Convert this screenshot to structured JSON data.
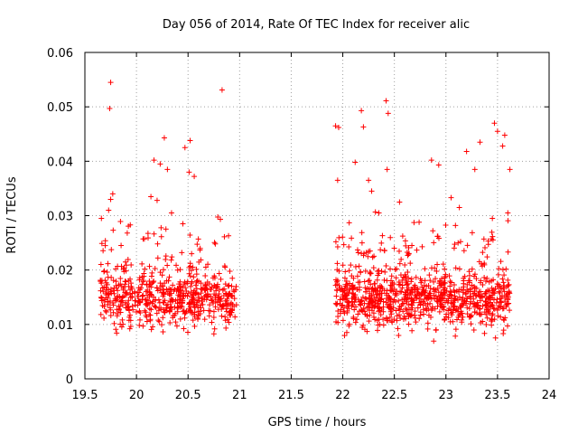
{
  "chart_data": {
    "type": "scatter",
    "title": "Day 056 of 2014, Rate Of TEC Index for receiver alic",
    "xlabel": "GPS time / hours",
    "ylabel": "ROTI / TECUs",
    "xlim": [
      19.5,
      24
    ],
    "ylim": [
      0,
      0.06
    ],
    "xticks": [
      "19.5",
      "20",
      "20.5",
      "21",
      "21.5",
      "22",
      "22.5",
      "23",
      "23.5",
      "24"
    ],
    "yticks": [
      "0",
      "0.01",
      "0.02",
      "0.03",
      "0.04",
      "0.05",
      "0.06"
    ],
    "grid": true,
    "marker": "+",
    "color": "#ff0000",
    "series": [
      {
        "name": "ROTI",
        "points": [
          [
            19.75,
            0.0545
          ],
          [
            19.74,
            0.0497
          ],
          [
            20.83,
            0.0531
          ],
          [
            22.18,
            0.0493
          ],
          [
            22.42,
            0.0511
          ],
          [
            22.44,
            0.0488
          ],
          [
            20.27,
            0.0443
          ],
          [
            20.52,
            0.0438
          ],
          [
            20.47,
            0.0425
          ],
          [
            21.93,
            0.0465
          ],
          [
            21.96,
            0.0462
          ],
          [
            22.2,
            0.0463
          ],
          [
            23.47,
            0.047
          ],
          [
            23.5,
            0.0455
          ],
          [
            23.57,
            0.0448
          ],
          [
            23.33,
            0.0435
          ],
          [
            23.55,
            0.0428
          ],
          [
            23.2,
            0.0418
          ],
          [
            22.12,
            0.0398
          ],
          [
            20.17,
            0.0402
          ],
          [
            20.23,
            0.0395
          ],
          [
            20.3,
            0.0385
          ],
          [
            20.51,
            0.038
          ],
          [
            20.56,
            0.0372
          ],
          [
            22.86,
            0.0402
          ],
          [
            22.93,
            0.0393
          ],
          [
            23.62,
            0.0385
          ],
          [
            23.28,
            0.0385
          ],
          [
            22.43,
            0.0385
          ],
          [
            21.95,
            0.0365
          ],
          [
            19.77,
            0.034
          ],
          [
            19.75,
            0.033
          ],
          [
            19.66,
            0.0295
          ],
          [
            19.73,
            0.031
          ],
          [
            19.94,
            0.0283
          ],
          [
            20.14,
            0.0335
          ],
          [
            20.2,
            0.0328
          ],
          [
            20.34,
            0.0305
          ],
          [
            20.45,
            0.0285
          ],
          [
            22.25,
            0.0365
          ],
          [
            22.28,
            0.0345
          ],
          [
            22.55,
            0.0325
          ],
          [
            23.05,
            0.0333
          ],
          [
            23.13,
            0.0315
          ],
          [
            23.6,
            0.0305
          ],
          [
            23.45,
            0.0295
          ],
          [
            22.35,
            0.0305
          ],
          [
            22.74,
            0.0288
          ]
        ]
      }
    ]
  }
}
